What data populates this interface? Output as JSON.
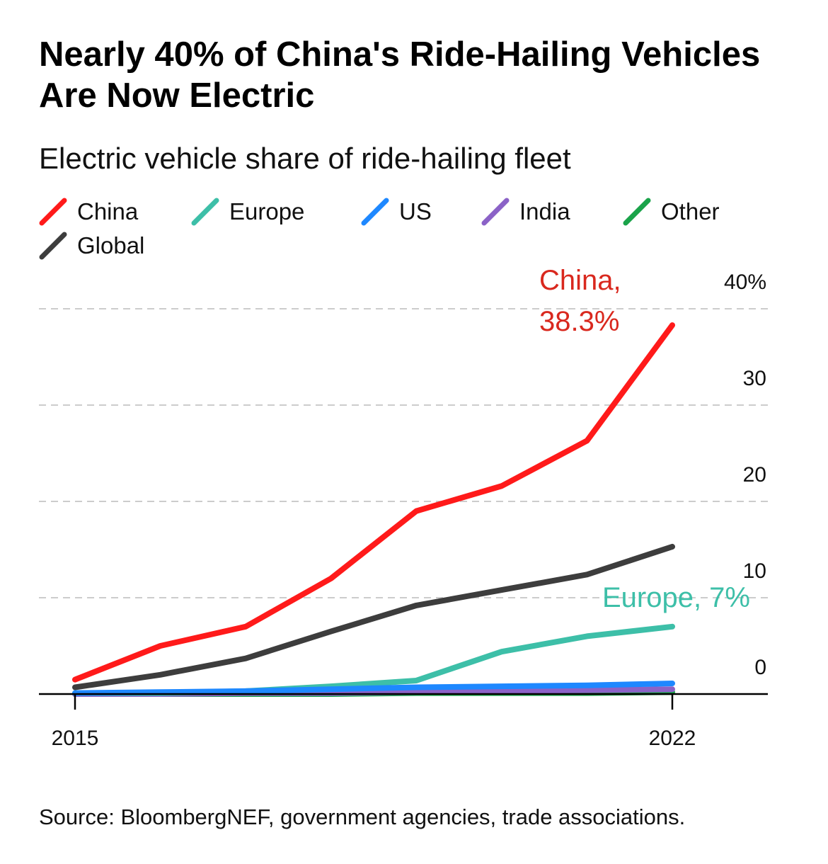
{
  "title": "Nearly 40% of China's Ride-Hailing Vehicles Are Now Electric",
  "subtitle": "Electric vehicle share of ride-hailing fleet",
  "source": "Source: BloombergNEF, government agencies, trade associations.",
  "chart_data": {
    "type": "line",
    "title": "Nearly 40% of China's Ride-Hailing Vehicles Are Now Electric",
    "subtitle": "Electric vehicle share of ride-hailing fleet",
    "xlabel": "",
    "ylabel": "",
    "x": [
      2015,
      2016,
      2017,
      2018,
      2019,
      2020,
      2021,
      2022
    ],
    "x_tick_labels": [
      "2015",
      "2022"
    ],
    "ylim": [
      0,
      40
    ],
    "y_ticks": [
      0,
      10,
      20,
      30,
      40
    ],
    "y_tick_labels": [
      "0",
      "10",
      "20",
      "30",
      "40%"
    ],
    "grid": true,
    "legend_position": "top-left",
    "series": [
      {
        "name": "China",
        "color": "#ff1a1a",
        "values": [
          1.5,
          5.0,
          7.0,
          12.0,
          19.0,
          21.6,
          26.3,
          38.3
        ]
      },
      {
        "name": "Europe",
        "color": "#3dbfa8",
        "values": [
          0.1,
          0.1,
          0.3,
          0.8,
          1.4,
          4.4,
          6.0,
          7.0
        ]
      },
      {
        "name": "US",
        "color": "#1e88ff",
        "values": [
          0.1,
          0.2,
          0.3,
          0.5,
          0.7,
          0.8,
          0.9,
          1.1
        ]
      },
      {
        "name": "India",
        "color": "#8b62c7",
        "values": [
          0.0,
          0.0,
          0.1,
          0.1,
          0.2,
          0.3,
          0.4,
          0.5
        ]
      },
      {
        "name": "Other",
        "color": "#1aa34a",
        "values": [
          0.0,
          0.0,
          0.0,
          0.0,
          0.1,
          0.1,
          0.1,
          0.2
        ]
      },
      {
        "name": "Global",
        "color": "#3d3d3d",
        "values": [
          0.7,
          2.0,
          3.7,
          6.5,
          9.2,
          10.8,
          12.4,
          15.3
        ]
      }
    ],
    "annotations": [
      {
        "series": "China",
        "lines": [
          "China,",
          "38.3%"
        ],
        "color": "#d9281e"
      },
      {
        "series": "Europe",
        "lines": [
          "Europe, 7%"
        ],
        "color": "#3dbfa8"
      }
    ]
  }
}
